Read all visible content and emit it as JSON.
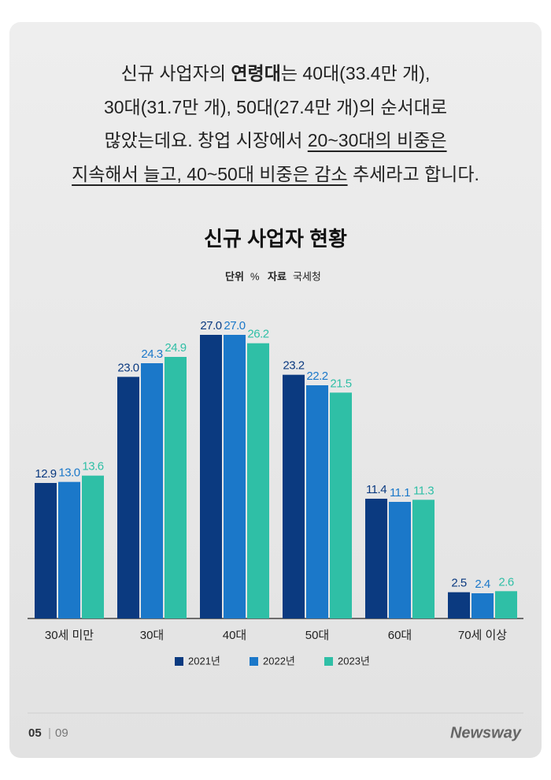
{
  "intro": [
    [
      "신규 사업자의 ",
      "연령대",
      "는 40대(33.4만 개),"
    ],
    [
      "30대(31.7만 개), 50대(27.4만 개)의 순서대로"
    ],
    [
      "많았는데요. 창업 시장에서 ",
      "20~30대의 비중은"
    ],
    [
      "지속해서 늘고, 40~50대 비중은 감소",
      " 추세라고 합니다."
    ]
  ],
  "chart_data": {
    "type": "bar",
    "title": "신규 사업자 현황",
    "unit_label": "단위",
    "unit": "%",
    "source_label": "자료",
    "source": "국세청",
    "categories": [
      "30세 미만",
      "30대",
      "40대",
      "50대",
      "60대",
      "70세 이상"
    ],
    "series": [
      {
        "name": "2021년",
        "color": "#0b3a80",
        "values": [
          12.9,
          23.0,
          27.0,
          23.2,
          11.4,
          2.5
        ],
        "value_labels": [
          "12.9",
          "23.0",
          "27.0",
          "23.2",
          "11.4",
          "2.5"
        ]
      },
      {
        "name": "2022년",
        "color": "#1b78c9",
        "values": [
          13.0,
          24.3,
          27.0,
          22.2,
          11.1,
          2.4
        ],
        "value_labels": [
          "13.0",
          "24.3",
          "27.0",
          "22.2",
          "11.1",
          "2.4"
        ]
      },
      {
        "name": "2023년",
        "color": "#2fbfa6",
        "values": [
          13.6,
          24.9,
          26.2,
          21.5,
          11.3,
          2.6
        ],
        "value_labels": [
          "13.6",
          "24.9",
          "26.2",
          "21.5",
          "11.3",
          "2.6"
        ]
      }
    ],
    "ylim": [
      0,
      30
    ]
  },
  "footer": {
    "page": "05",
    "total": "09",
    "brand": "Newsway"
  }
}
